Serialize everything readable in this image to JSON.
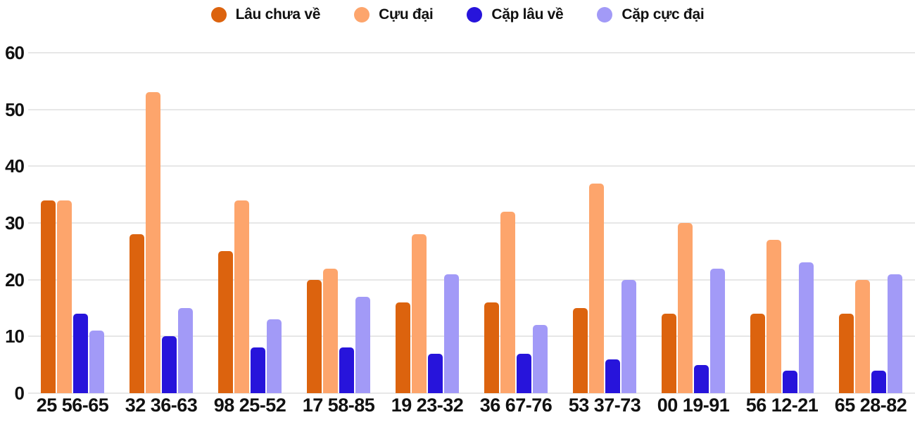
{
  "chart_data": {
    "type": "bar",
    "title": "",
    "xlabel": "",
    "ylabel": "",
    "categories": [
      "25 56-65",
      "32 36-63",
      "98 25-52",
      "17 58-85",
      "19 23-32",
      "36 67-76",
      "53 37-73",
      "00 19-91",
      "56 12-21",
      "65 28-82"
    ],
    "series": [
      {
        "name": "Lâu chưa về",
        "color": "#dc630e",
        "values": [
          34,
          28,
          25,
          20,
          16,
          16,
          15,
          14,
          14,
          14
        ]
      },
      {
        "name": "Cựu đại",
        "color": "#fda56c",
        "values": [
          34,
          53,
          34,
          22,
          28,
          32,
          37,
          30,
          27,
          20
        ]
      },
      {
        "name": "Cặp lâu về",
        "color": "#2714db",
        "values": [
          14,
          10,
          8,
          8,
          7,
          7,
          6,
          5,
          4,
          4
        ]
      },
      {
        "name": "Cặp cực đại",
        "color": "#a29af7",
        "values": [
          11,
          15,
          13,
          17,
          21,
          12,
          20,
          22,
          23,
          21
        ]
      }
    ],
    "ylim": [
      0,
      60
    ],
    "yticks": [
      0,
      10,
      20,
      30,
      40,
      50,
      60
    ],
    "grid": true,
    "legend_position": "top"
  },
  "colors": {
    "grid": "#e7e7e7",
    "text": "#111111",
    "background": "#ffffff"
  }
}
